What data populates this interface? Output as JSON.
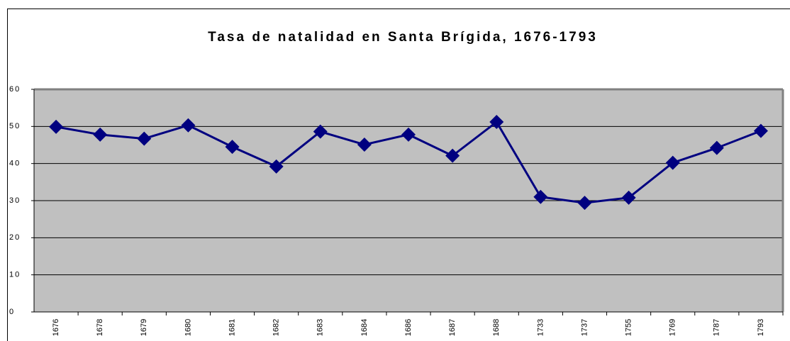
{
  "chart_data": {
    "type": "line",
    "title": "Tasa de natalidad en Santa Brígida, 1676-1793",
    "categories": [
      "1676",
      "1678",
      "1679",
      "1680",
      "1681",
      "1682",
      "1683",
      "1684",
      "1686",
      "1687",
      "1688",
      "1733",
      "1737",
      "1755",
      "1769",
      "1787",
      "1793"
    ],
    "values": [
      49.9,
      47.8,
      46.7,
      50.3,
      44.5,
      39.2,
      48.6,
      45.1,
      47.8,
      42.1,
      51.2,
      31.0,
      29.4,
      30.8,
      40.2,
      44.2,
      48.8
    ],
    "color": "#000080",
    "plot_color": "#c0c0c0",
    "ylim": [
      0,
      60
    ],
    "yticks": [
      0,
      10,
      20,
      30,
      40,
      50,
      60
    ],
    "grid": true
  }
}
